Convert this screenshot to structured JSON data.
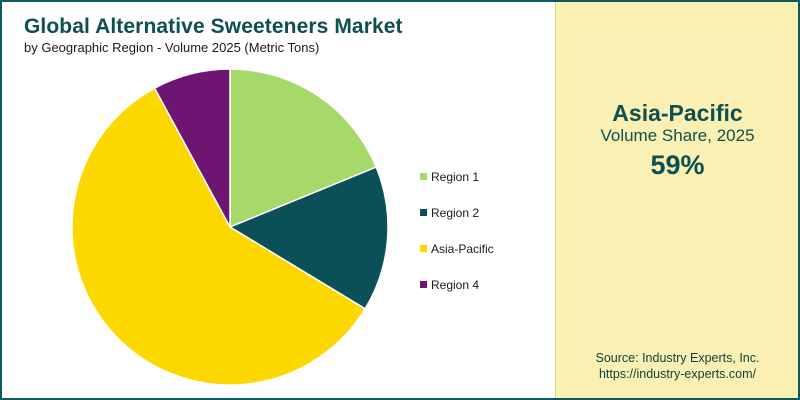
{
  "chart_data": {
    "type": "pie",
    "title": "Global Alternative Sweeteners Market",
    "subtitle": "by Geographic Region - Volume 2025 (Metric Tons)",
    "categories": [
      "Region 1",
      "Region 2",
      "Asia-Pacific",
      "Region 4"
    ],
    "values": [
      19,
      15,
      59,
      8
    ],
    "colors": [
      "#a6d86a",
      "#0b4f57",
      "#fdd700",
      "#6e1473"
    ],
    "legend_position": "right"
  },
  "highlight": {
    "region": "Asia-Pacific",
    "metric": "Volume Share, 2025",
    "value": "59%"
  },
  "source": {
    "line1": "Source: Industry Experts, Inc.",
    "line2": "https://industry-experts.com/"
  }
}
